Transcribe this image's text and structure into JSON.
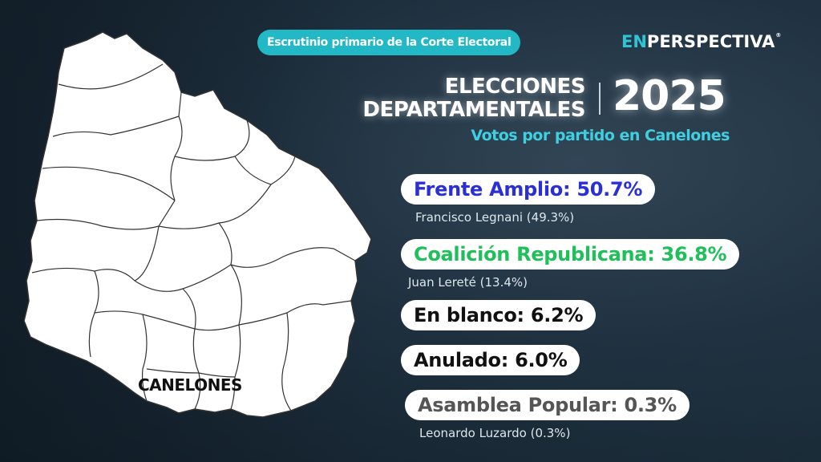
{
  "header": {
    "source_label": "Escrutinio primario de la Corte Electoral",
    "brand_prefix": "EN",
    "brand_suffix": "PERSPECTIVA",
    "brand_mark": "®"
  },
  "title": {
    "line1": "ELECCIONES",
    "line2": "DEPARTAMENTALES",
    "year": "2025",
    "subtitle": "Votos por partido en Canelones"
  },
  "map": {
    "highlight_label": "CANELONES",
    "fill_color": "#ffffff",
    "border_color": "#333333"
  },
  "results": [
    {
      "label": "Frente Amplio: 50.7%",
      "color": "#2b2fd6",
      "candidate": "Francisco Legnani (49.3%)"
    },
    {
      "label": "Coalición Republicana: 36.8%",
      "color": "#1fbf5a",
      "candidate": "Juan Lereté (13.4%)"
    },
    {
      "label": "En blanco: 6.2%",
      "color": "#111111",
      "candidate": ""
    },
    {
      "label": "Anulado: 6.0%",
      "color": "#111111",
      "candidate": ""
    },
    {
      "label": "Asamblea Popular: 0.3%",
      "color": "#555555",
      "candidate": "Leonardo Luzardo (0.3%)"
    }
  ]
}
